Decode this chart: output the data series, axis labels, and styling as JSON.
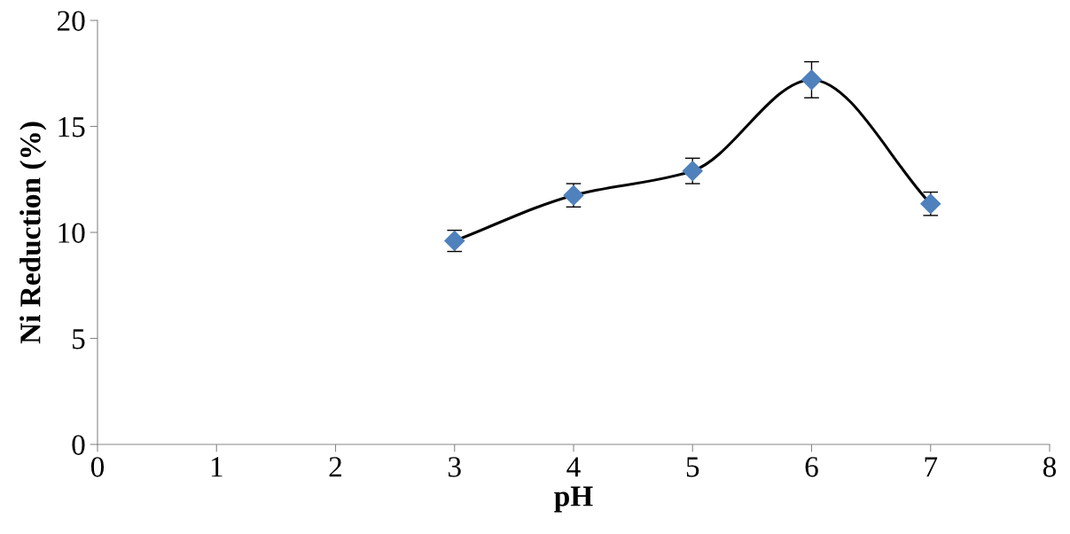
{
  "chart_data": {
    "type": "line",
    "xlabel": "pH",
    "ylabel": "Ni Reduction (%)",
    "x": [
      3,
      4,
      5,
      6,
      7
    ],
    "series": [
      {
        "color": "#4f81bd",
        "values": [
          9.6,
          11.75,
          12.9,
          17.2,
          11.35
        ],
        "errors": [
          0.5,
          0.55,
          0.6,
          0.85,
          0.55
        ]
      }
    ],
    "xlim": [
      0,
      8
    ],
    "xticks": [
      0,
      1,
      2,
      3,
      4,
      5,
      6,
      7,
      8
    ],
    "ylim": [
      0,
      20
    ],
    "yticks": [
      0,
      5,
      10,
      15,
      20
    ],
    "marker": "diamond",
    "grid": false
  }
}
